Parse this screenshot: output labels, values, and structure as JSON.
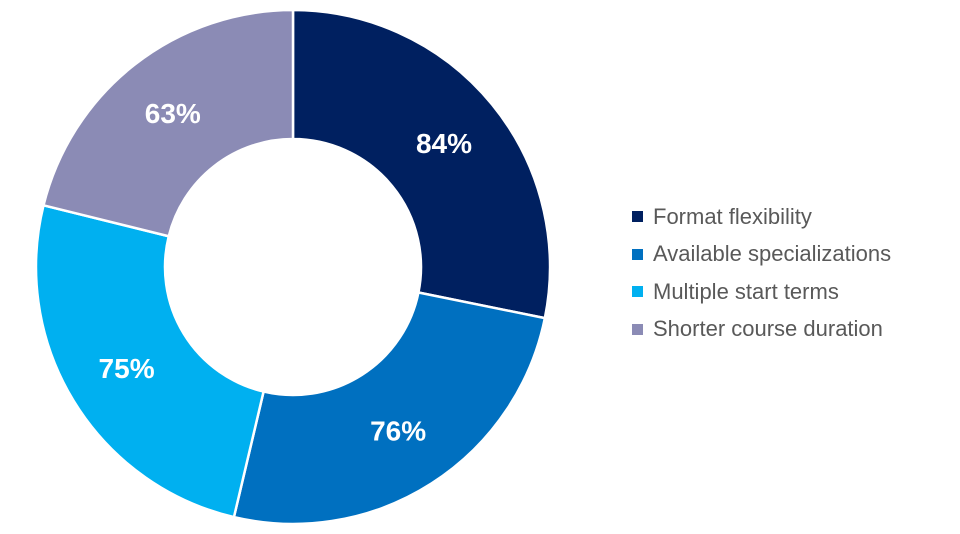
{
  "chart_data": {
    "type": "pie",
    "title": "",
    "categories": [
      "Format flexibility",
      "Available specializations",
      "Multiple start terms",
      "Shorter course duration"
    ],
    "values": [
      84,
      76,
      75,
      63
    ],
    "labels": [
      "84%",
      "76%",
      "75%",
      "63%"
    ],
    "colors": [
      "#002060",
      "#0070C0",
      "#00B0F0",
      "#8B8BB5"
    ],
    "donut": true,
    "legend_position": "right"
  }
}
